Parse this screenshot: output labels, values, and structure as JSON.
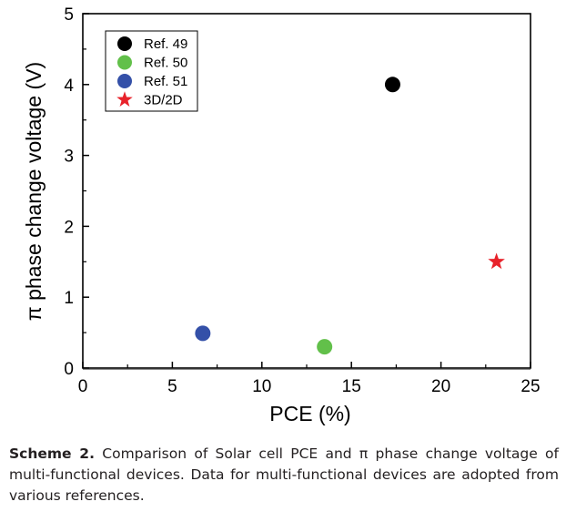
{
  "chart_data": {
    "type": "scatter",
    "xlabel": "PCE (%)",
    "ylabel": "π phase change voltage (V)",
    "xlim": [
      0,
      25
    ],
    "ylim": [
      0,
      5
    ],
    "x_ticks": [
      "0",
      "5",
      "10",
      "15",
      "20",
      "25"
    ],
    "y_ticks": [
      "0",
      "1",
      "2",
      "3",
      "4",
      "5"
    ],
    "grid": false,
    "legend_position": "top-left",
    "series": [
      {
        "name": "Ref. 49",
        "marker": "circle",
        "color": "#000000",
        "x": [
          17.3
        ],
        "y": [
          4.0
        ]
      },
      {
        "name": "Ref. 50",
        "marker": "circle",
        "color": "#62c04a",
        "x": [
          13.5
        ],
        "y": [
          0.3
        ]
      },
      {
        "name": "Ref. 51",
        "marker": "circle",
        "color": "#3450a8",
        "x": [
          6.7
        ],
        "y": [
          0.49
        ]
      },
      {
        "name": "3D/2D",
        "marker": "star",
        "color": "#e8222a",
        "x": [
          23.1
        ],
        "y": [
          1.5
        ]
      }
    ]
  },
  "caption": {
    "label": "Scheme 2.",
    "text": "Comparison of Solar cell PCE and π phase change voltage of multi-functional devices. Data for multi-functional devices are adopted from various references."
  }
}
